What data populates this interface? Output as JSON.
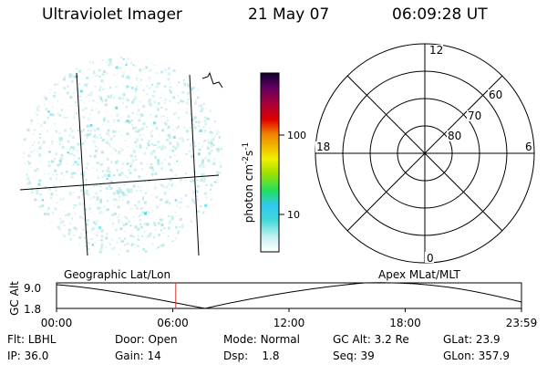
{
  "header": {
    "instrument": "Ultraviolet Imager",
    "date": "21 May 07",
    "time": "06:09:28 UT"
  },
  "colorbar": {
    "unit_label": "photon cm",
    "unit_exp1": "-2",
    "unit_s": "s",
    "unit_exp2": "-1",
    "ticks": [
      "100",
      "10"
    ]
  },
  "polar_plot": {
    "mlt_labels": {
      "top": "12",
      "bottom": "0",
      "left": "18",
      "right": "6"
    },
    "lat_labels": [
      "60",
      "70",
      "80"
    ]
  },
  "timeline": {
    "axis_label": "GC Alt",
    "y_ticks": [
      "9.0",
      "1.8"
    ],
    "left_title": "Geographic Lat/Lon",
    "right_title": "Apex MLat/MLT",
    "x_ticks": [
      "00:00",
      "06:00",
      "12:00",
      "18:00",
      "23:59"
    ],
    "marker_fraction": 0.2565
  },
  "info": {
    "flt_label": "Flt:",
    "flt_value": "LBHL",
    "door_label": "Door:",
    "door_value": "Open",
    "mode_label": "Mode:",
    "mode_value": "Normal",
    "gcalt_label": "GC Alt:",
    "gcalt_value": "3.2 Re",
    "glat_label": "GLat:",
    "glat_value": "23.9",
    "ip_label": "IP:",
    "ip_value": "36.0",
    "gain_label": "Gain:",
    "gain_value": "14",
    "dsp_label": "Dsp:",
    "dsp_value": "1.8",
    "seq_label": "Seq:",
    "seq_value": "39",
    "glon_label": "GLon:",
    "glon_value": "357.9"
  },
  "colors": {
    "speckle": "#b8e6e6",
    "speckle_bright": "#40d8e8",
    "marker": "#d03020"
  }
}
